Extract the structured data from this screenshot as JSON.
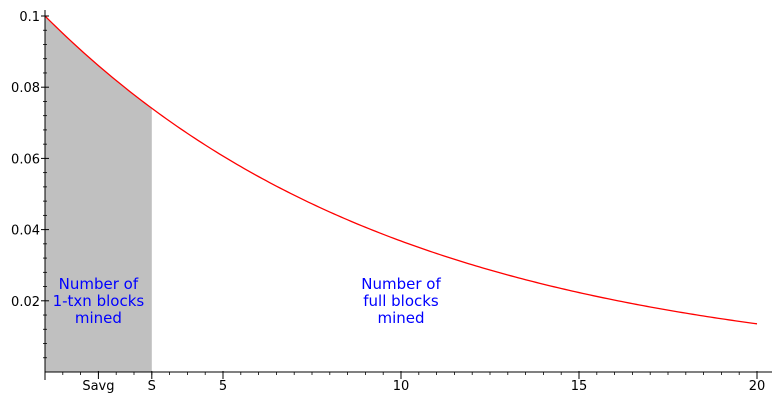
{
  "chart_data": {
    "type": "area",
    "title": "",
    "xlabel": "",
    "ylabel": "",
    "xlim": [
      0,
      20
    ],
    "ylim": [
      0,
      0.1
    ],
    "grid": false,
    "curve": {
      "function": "0.1*exp(-0.1*x)",
      "x_start": 0,
      "x_end": 20,
      "color": "#ff0000"
    },
    "shaded_region": {
      "x_start": 0,
      "x_end": 3,
      "color": "#c0c0c0"
    },
    "x_ticks": [
      {
        "value": 1.5,
        "label": "Savg"
      },
      {
        "value": 3,
        "label": "S"
      },
      {
        "value": 5,
        "label": "5"
      },
      {
        "value": 10,
        "label": "10"
      },
      {
        "value": 15,
        "label": "15"
      },
      {
        "value": 20,
        "label": "20"
      }
    ],
    "y_ticks": [
      {
        "value": 0.02,
        "label": "0.02"
      },
      {
        "value": 0.04,
        "label": "0.04"
      },
      {
        "value": 0.06,
        "label": "0.06"
      },
      {
        "value": 0.08,
        "label": "0.08"
      },
      {
        "value": 0.1,
        "label": "0.1"
      }
    ],
    "annotations": [
      {
        "lines": [
          "Number of",
          "1-txn blocks",
          "mined"
        ],
        "x": 1.5,
        "y": 0.02,
        "color": "#0000ff"
      },
      {
        "lines": [
          "Number of",
          "full blocks",
          "mined"
        ],
        "x": 10,
        "y": 0.02,
        "color": "#0000ff"
      }
    ]
  }
}
